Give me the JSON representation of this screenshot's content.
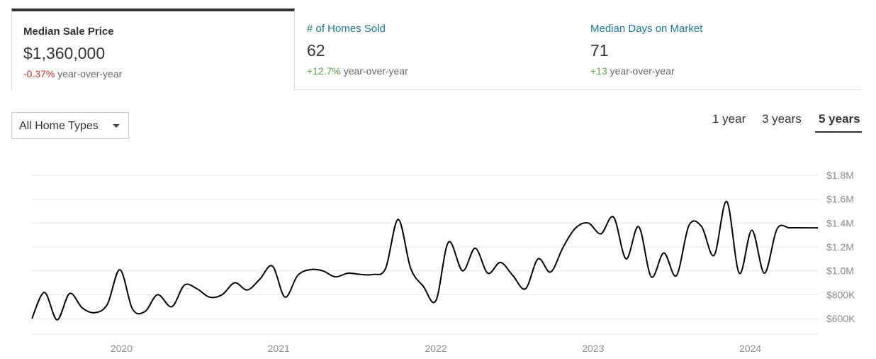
{
  "stats": [
    {
      "label": "Median Sale Price",
      "value": "$1,360,000",
      "change": "-0.37%",
      "change_suffix": "year-over-year",
      "direction": "down",
      "active": true
    },
    {
      "label": "# of Homes Sold",
      "value": "62",
      "change": "+12.7%",
      "change_suffix": "year-over-year",
      "direction": "up",
      "active": false
    },
    {
      "label": "Median Days on Market",
      "value": "71",
      "change": "+13",
      "change_suffix": "year-over-year",
      "direction": "up",
      "active": false
    }
  ],
  "filter": {
    "selected": "All Home Types",
    "icon": "caret-down-icon"
  },
  "range_tabs": [
    {
      "label": "1 year",
      "active": false
    },
    {
      "label": "3 years",
      "active": false
    },
    {
      "label": "5 years",
      "active": true
    }
  ],
  "colors": {
    "negative": "#d5322c",
    "positive": "#5aa845",
    "link": "#1b7a91",
    "line": "#000000"
  },
  "chart_data": {
    "type": "line",
    "title": "",
    "xlabel": "",
    "ylabel": "",
    "x_ticks": [
      "2020",
      "2021",
      "2022",
      "2023",
      "2024"
    ],
    "y_ticks": [
      "$600K",
      "$800K",
      "$1.0M",
      "$1.2M",
      "$1.4M",
      "$1.6M",
      "$1.8M"
    ],
    "y_tick_values": [
      600000,
      800000,
      1000000,
      1200000,
      1400000,
      1600000,
      1800000
    ],
    "ylim": [
      470000,
      1800000
    ],
    "xlim": [
      2019.43,
      2024.43
    ],
    "grid": true,
    "series": [
      {
        "x": [
          2019.43,
          2019.51,
          2019.59,
          2019.67,
          2019.75,
          2019.83,
          2019.91,
          2019.99,
          2020.07,
          2020.15,
          2020.23,
          2020.32,
          2020.4,
          2020.48,
          2020.56,
          2020.64,
          2020.72,
          2020.8,
          2020.88,
          2020.96,
          2021.04,
          2021.12,
          2021.2,
          2021.28,
          2021.36,
          2021.44,
          2021.52,
          2021.6,
          2021.68,
          2021.76,
          2021.84,
          2021.92,
          2022.0,
          2022.08,
          2022.17,
          2022.25,
          2022.33,
          2022.41,
          2022.49,
          2022.57,
          2022.65,
          2022.73,
          2022.81,
          2022.89,
          2022.97,
          2023.05,
          2023.13,
          2023.21,
          2023.29,
          2023.37,
          2023.45,
          2023.53,
          2023.61,
          2023.69,
          2023.77,
          2023.85,
          2023.93,
          2024.01,
          2024.09,
          2024.17,
          2024.25,
          2024.33,
          2024.43
        ],
        "y": [
          600000,
          820000,
          590000,
          810000,
          690000,
          650000,
          720000,
          1010000,
          680000,
          660000,
          800000,
          700000,
          880000,
          850000,
          780000,
          800000,
          900000,
          840000,
          930000,
          1040000,
          780000,
          960000,
          1010000,
          1000000,
          950000,
          980000,
          970000,
          970000,
          1020000,
          1430000,
          1020000,
          870000,
          750000,
          1240000,
          1000000,
          1190000,
          980000,
          1070000,
          960000,
          850000,
          1100000,
          990000,
          1200000,
          1360000,
          1400000,
          1310000,
          1450000,
          1100000,
          1370000,
          950000,
          1150000,
          960000,
          1380000,
          1370000,
          1130000,
          1580000,
          980000,
          1340000,
          980000,
          1350000,
          1360000,
          1360000,
          1360000
        ]
      }
    ]
  }
}
